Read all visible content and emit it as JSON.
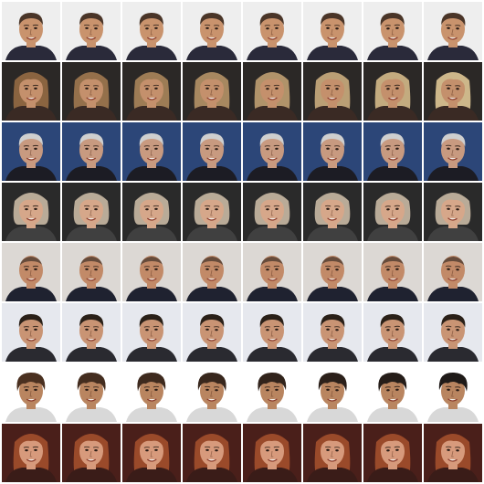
{
  "grid": {
    "rows": 8,
    "cols": 8,
    "subjects": [
      {
        "bg": "#eeeeee",
        "skin": "#c9936d",
        "hair": "#4a3528",
        "hair_style": "short",
        "shirt": "#2a2a3a"
      },
      {
        "bg": "#2b2826",
        "skin": "#c4906c",
        "hair": "#8a6440",
        "hair_style": "long",
        "shirt": "#3a2a24",
        "hair_end": "#cdb78a"
      },
      {
        "bg": "#2c4678",
        "skin": "#c89a80",
        "hair": "#cfcfcf",
        "hair_style": "short",
        "shirt": "#1c1c24"
      },
      {
        "bg": "#2a2a2a",
        "skin": "#d6a78a",
        "hair": "#b9ab98",
        "hair_style": "bob",
        "shirt": "#404040"
      },
      {
        "bg": "#dcd8d4",
        "skin": "#c28a68",
        "hair": "#3e3028",
        "hair_style": "bald",
        "shirt": "#1f2230"
      },
      {
        "bg": "#e6e8ee",
        "skin": "#c99474",
        "hair": "#2a2018",
        "hair_style": "short",
        "shirt": "#2a2a30"
      },
      {
        "bg": "#ffffff",
        "skin": "#b98560",
        "hair": "#4a3020",
        "hair_style": "shaggy",
        "shirt": "#d8d8d8",
        "hair_end": "#1f1a18"
      },
      {
        "bg": "#4a1f1a",
        "skin": "#d79a7c",
        "hair": "#9a4a2a",
        "hair_style": "long",
        "shirt": "#3a1c18"
      }
    ]
  }
}
